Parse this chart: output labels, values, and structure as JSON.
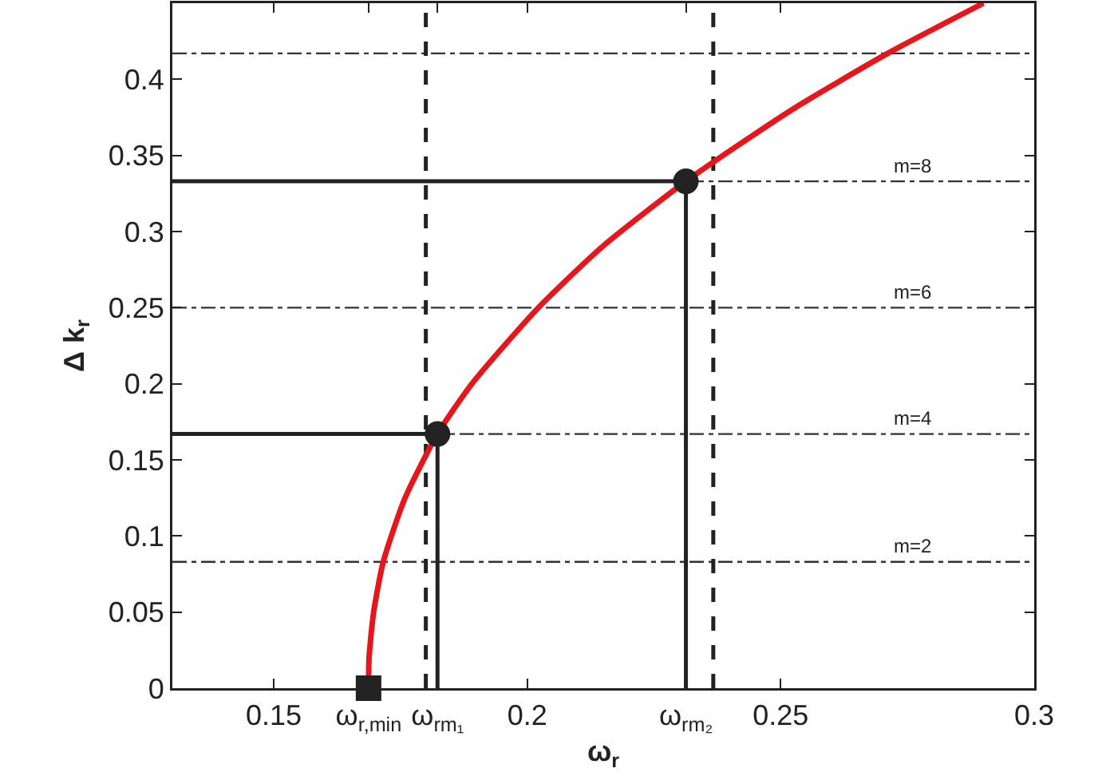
{
  "chart_data": {
    "type": "line",
    "xlabel": "ω$_{r}$",
    "ylabel": "Δ k$_{r}$",
    "xlim": [
      0.13,
      0.3
    ],
    "ylim": [
      0,
      0.45
    ],
    "xticks": [
      0.15,
      {
        "value": 0.1687,
        "label": "ω$_{r,min}$"
      },
      {
        "value": 0.1823,
        "label": "ω$_{rm₁}$"
      },
      0.2,
      {
        "value": 0.2313,
        "label": "ω$_{rm₂}$"
      },
      0.25,
      0.3
    ],
    "yticks": [
      0,
      0.05,
      0.1,
      0.15,
      0.2,
      0.25,
      0.3,
      0.35,
      0.4
    ],
    "grid": false,
    "series": [
      {
        "color": "#e8161b",
        "marker": "none",
        "line_style": "solid",
        "x": [
          0.1687,
          0.1688,
          0.1697,
          0.1716,
          0.1759,
          0.1823,
          0.1891,
          0.2022,
          0.2148,
          0.2313,
          0.2522,
          0.2711,
          0.29
        ],
        "values": [
          0,
          0.02,
          0.05,
          0.083,
          0.125,
          0.167,
          0.2,
          0.25,
          0.29,
          0.333,
          0.38,
          0.417,
          0.45
        ]
      },
      {
        "color": "#222222",
        "marker": "none",
        "line_style": "solid",
        "x": [
          0.13,
          0.1823,
          0.1823
        ],
        "values": [
          0.167,
          0.167,
          0
        ]
      },
      {
        "color": "#222222",
        "marker": "none",
        "line_style": "solid",
        "x": [
          0.13,
          0.2313,
          0.2313
        ],
        "values": [
          0.333,
          0.333,
          0
        ]
      },
      {
        "type": "scatter",
        "color": "#222222",
        "marker": "circle",
        "x": [
          0.1823,
          0.2313
        ],
        "values": [
          0.167,
          0.333
        ]
      },
      {
        "type": "scatter",
        "color": "#222222",
        "marker": "square",
        "x": [
          0.1687
        ],
        "values": [
          0
        ]
      }
    ],
    "ref_lines": [
      {
        "axis": "y",
        "value": 0.083,
        "label": null,
        "color": "#333333",
        "line_style": "dashdot"
      },
      {
        "axis": "y",
        "value": 0.167,
        "label": null,
        "color": "#333333",
        "line_style": "dashdot"
      },
      {
        "axis": "y",
        "value": 0.25,
        "label": null,
        "color": "#333333",
        "line_style": "dashdot"
      },
      {
        "axis": "y",
        "value": 0.333,
        "label": null,
        "color": "#333333",
        "line_style": "dashdot"
      },
      {
        "axis": "y",
        "value": 0.417,
        "label": null,
        "color": "#333333",
        "line_style": "dashdot"
      },
      {
        "axis": "x",
        "value": 0.18,
        "label": null,
        "color": "#222222",
        "line_style": "dashed"
      },
      {
        "axis": "x",
        "value": 0.2367,
        "label": null,
        "color": "#222222",
        "line_style": "dashed"
      }
    ],
    "annotations": [
      {
        "text": "m=2",
        "y": 0.083
      },
      {
        "text": "m=4",
        "y": 0.167
      },
      {
        "text": "m=6",
        "y": 0.25
      },
      {
        "text": "m=8",
        "y": 0.333
      }
    ]
  }
}
